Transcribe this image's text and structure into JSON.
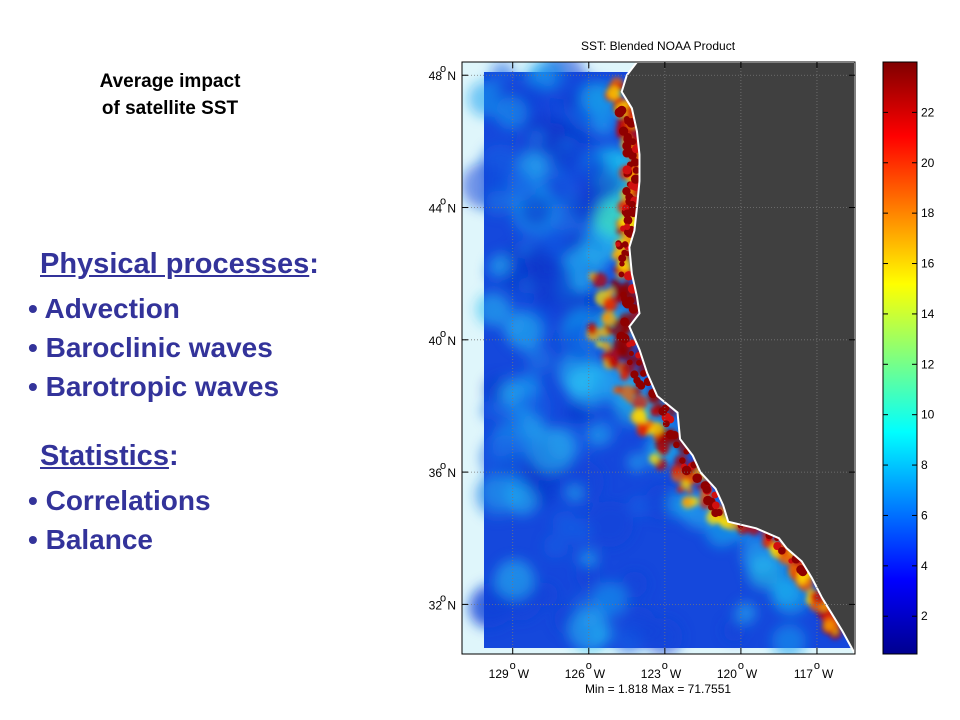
{
  "slide": {
    "subtitle_line1": "Average impact",
    "subtitle_line2": "of satellite SST",
    "physical_heading": "Physical processes",
    "physical_items": [
      "Advection",
      "Baroclinic waves",
      "Barotropic waves"
    ],
    "statistics_heading": "Statistics",
    "statistics_items": [
      "Correlations",
      "Balance"
    ]
  },
  "chart_data": {
    "type": "heatmap",
    "title": "SST: Blended NOAA Product",
    "footer": "Min = 1.818 Max = 71.7551",
    "xticks": [
      {
        "deg": "129",
        "dir": "W",
        "value": -129
      },
      {
        "deg": "126",
        "dir": "W",
        "value": -126
      },
      {
        "deg": "123",
        "dir": "W",
        "value": -123
      },
      {
        "deg": "120",
        "dir": "W",
        "value": -120
      },
      {
        "deg": "117",
        "dir": "W",
        "value": -117
      }
    ],
    "yticks": [
      {
        "deg": "48",
        "dir": "N",
        "value": 48
      },
      {
        "deg": "44",
        "dir": "N",
        "value": 44
      },
      {
        "deg": "40",
        "dir": "N",
        "value": 40
      },
      {
        "deg": "36",
        "dir": "N",
        "value": 36
      },
      {
        "deg": "32",
        "dir": "N",
        "value": 32
      }
    ],
    "xlim": [
      -131,
      -115.5
    ],
    "ylim": [
      30.5,
      48.4
    ],
    "colorbar": {
      "range": [
        0.5,
        24.0
      ],
      "ticks": [
        2,
        4,
        6,
        8,
        10,
        12,
        14,
        16,
        18,
        20,
        22
      ]
    },
    "colors": {
      "land": "#404040",
      "nodata": "#dff6fb",
      "ocean_low": "#0a3cd6",
      "ocean_mid": "#12a9ee",
      "coastal_high": "#8f0000"
    },
    "grid": true,
    "coastline": [
      [
        -124.1,
        48.4
      ],
      [
        -124.5,
        48.0
      ],
      [
        -124.7,
        47.5
      ],
      [
        -124.3,
        47.0
      ],
      [
        -124.1,
        46.3
      ],
      [
        -124.0,
        45.6
      ],
      [
        -124.0,
        44.8
      ],
      [
        -124.1,
        44.0
      ],
      [
        -124.2,
        43.3
      ],
      [
        -124.4,
        42.8
      ],
      [
        -124.3,
        42.0
      ],
      [
        -124.1,
        41.3
      ],
      [
        -124.0,
        40.8
      ],
      [
        -124.4,
        40.4
      ],
      [
        -124.0,
        39.7
      ],
      [
        -123.7,
        39.0
      ],
      [
        -123.3,
        38.3
      ],
      [
        -122.5,
        37.8
      ],
      [
        -122.4,
        37.0
      ],
      [
        -121.9,
        36.5
      ],
      [
        -121.6,
        36.0
      ],
      [
        -121.0,
        35.5
      ],
      [
        -120.7,
        35.0
      ],
      [
        -120.5,
        34.5
      ],
      [
        -119.4,
        34.3
      ],
      [
        -118.5,
        34.0
      ],
      [
        -118.2,
        33.7
      ],
      [
        -117.6,
        33.3
      ],
      [
        -117.2,
        32.8
      ],
      [
        -116.8,
        32.2
      ],
      [
        -116.4,
        31.7
      ],
      [
        -116.0,
        31.2
      ],
      [
        -115.5,
        30.5
      ]
    ]
  }
}
